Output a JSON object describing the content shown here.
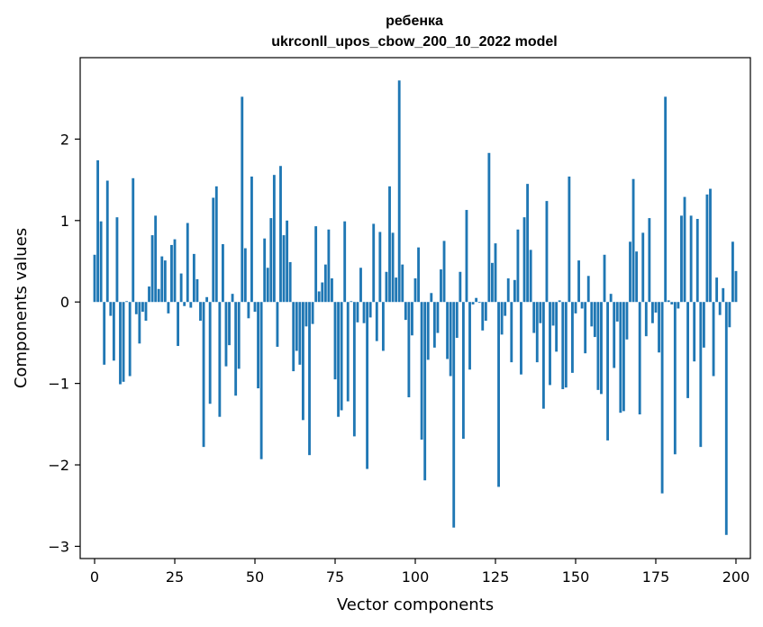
{
  "chart_data": {
    "type": "bar",
    "title": "ребенка",
    "subtitle": "ukrconll_upos_cbow_200_10_2022 model",
    "xlabel": "Vector components",
    "ylabel": "Components values",
    "xlim": [
      -4.5,
      204.5
    ],
    "ylim": [
      -3.15,
      3.0
    ],
    "xticks": [
      0,
      25,
      50,
      75,
      100,
      125,
      150,
      175,
      200
    ],
    "yticks": [
      -3,
      -2,
      -1,
      0,
      1,
      2
    ],
    "ytick_labels": [
      "−3",
      "−2",
      "−1",
      "0",
      "1",
      "2"
    ],
    "grid": false,
    "color": "#1f77b4",
    "values": [
      0.58,
      1.74,
      0.99,
      -0.77,
      1.49,
      -0.17,
      -0.72,
      1.04,
      -1.01,
      -0.98,
      0.01,
      -0.91,
      1.52,
      -0.15,
      -0.51,
      -0.12,
      -0.23,
      0.19,
      0.82,
      1.06,
      0.16,
      0.56,
      0.51,
      -0.14,
      0.7,
      0.77,
      -0.54,
      0.35,
      -0.05,
      0.97,
      -0.07,
      0.59,
      0.28,
      -0.23,
      -1.78,
      0.06,
      -1.25,
      1.28,
      1.42,
      -1.41,
      0.71,
      -0.79,
      -0.53,
      0.1,
      -1.15,
      -0.82,
      2.52,
      0.66,
      -0.2,
      1.54,
      -0.12,
      -1.06,
      -1.93,
      0.78,
      0.42,
      1.03,
      1.56,
      -0.55,
      1.67,
      0.82,
      1.0,
      0.49,
      -0.85,
      -0.6,
      -0.77,
      -1.45,
      -0.3,
      -1.88,
      -0.27,
      0.93,
      0.13,
      0.24,
      0.46,
      0.89,
      0.29,
      -0.95,
      -1.41,
      -1.33,
      0.99,
      -1.22,
      0.01,
      -1.65,
      -0.25,
      0.42,
      -0.26,
      -2.05,
      -0.19,
      0.96,
      -0.48,
      0.86,
      -0.6,
      0.37,
      1.42,
      0.85,
      0.3,
      2.72,
      0.46,
      -0.22,
      -1.17,
      -0.41,
      0.29,
      0.67,
      -1.69,
      -2.19,
      -0.71,
      0.11,
      -0.56,
      -0.38,
      0.4,
      0.75,
      -0.7,
      -0.91,
      -2.77,
      -0.44,
      0.37,
      -1.68,
      1.13,
      -0.83,
      -0.03,
      0.05,
      -0.01,
      -0.35,
      -0.23,
      1.83,
      0.48,
      0.72,
      -2.27,
      -0.4,
      -0.17,
      0.29,
      -0.74,
      0.27,
      0.89,
      -0.89,
      1.04,
      1.45,
      0.64,
      -0.38,
      -0.74,
      -0.26,
      -1.31,
      1.24,
      -1.02,
      -0.29,
      -0.61,
      0.02,
      -1.07,
      -1.05,
      1.54,
      -0.87,
      -0.14,
      0.51,
      -0.08,
      -0.63,
      0.32,
      -0.3,
      -0.43,
      -1.08,
      -1.13,
      0.58,
      -1.7,
      0.1,
      -0.81,
      -0.24,
      -1.36,
      -1.34,
      -0.46,
      0.74,
      1.51,
      0.62,
      -1.38,
      0.85,
      -0.42,
      1.03,
      -0.26,
      -0.13,
      -0.62,
      -2.35,
      2.52,
      0.02,
      -0.03,
      -1.87,
      -0.08,
      1.06,
      1.29,
      -1.18,
      1.06,
      -0.73,
      1.02,
      -1.78,
      -0.56,
      1.32,
      1.39,
      -0.91,
      0.3,
      -0.16,
      0.17,
      -2.86,
      -0.31,
      0.74,
      0.38
    ]
  }
}
